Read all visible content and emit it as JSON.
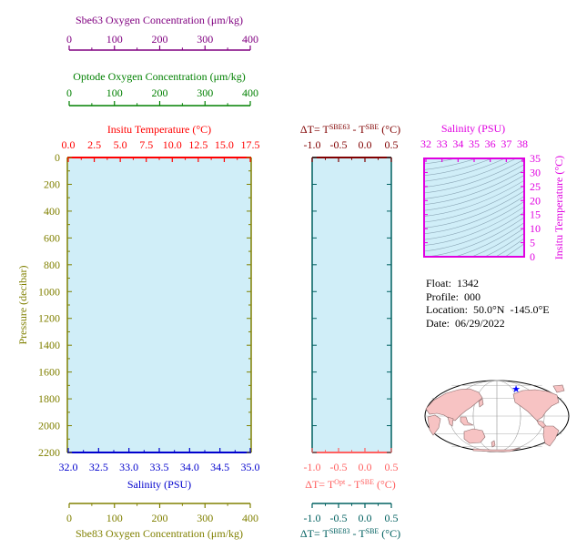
{
  "chart_data": [
    {
      "name": "profile-panel",
      "type": "line",
      "series": [],
      "y_axis": {
        "label": "Pressure (decibar)",
        "range": [
          0,
          2200
        ],
        "ticks": [
          0,
          200,
          400,
          600,
          800,
          1000,
          1200,
          1400,
          1600,
          1800,
          2000,
          2200
        ],
        "inverted": true,
        "color": "#808000"
      },
      "top_axes": [
        {
          "label": "Insitu Temperature (°C)",
          "range": [
            0,
            17.5
          ],
          "ticks": [
            "0.0",
            "2.5",
            "5.0",
            "7.5",
            "10.0",
            "12.5",
            "15.0",
            "17.5"
          ],
          "color": "#ff0000"
        },
        {
          "label": "Optode Oxygen Concentration (μm/kg)",
          "range": [
            0,
            400
          ],
          "ticks": [
            "0",
            "100",
            "200",
            "300",
            "400"
          ],
          "color": "#008000"
        },
        {
          "label": "Sbe63 Oxygen Concentration (μm/kg)",
          "range": [
            0,
            400
          ],
          "ticks": [
            "0",
            "100",
            "200",
            "300",
            "400"
          ],
          "color": "#800080"
        }
      ],
      "bottom_axes": [
        {
          "label": "Salinity (PSU)",
          "range": [
            32,
            35
          ],
          "ticks": [
            "32.0",
            "32.5",
            "33.0",
            "33.5",
            "34.0",
            "34.5",
            "35.0"
          ],
          "color": "#0000cd"
        },
        {
          "label": "Sbe83 Oxygen Concentration (μm/kg)",
          "range": [
            0,
            400
          ],
          "ticks": [
            "0",
            "100",
            "200",
            "300",
            "400"
          ],
          "color": "#808000"
        }
      ],
      "background": "#d0eef8"
    },
    {
      "name": "delta-t-panel",
      "type": "line",
      "series": [],
      "x_range": [
        -1.0,
        0.5
      ],
      "ticks": [
        "-1.0",
        "-0.5",
        "0.0",
        "0.5"
      ],
      "top_label": {
        "prefix": "ΔT= T",
        "sup1": "SBE63",
        "mid": " - T",
        "sup2": "SBE",
        "suffix": " (°C)",
        "color": "#800000"
      },
      "bottom_label_1": {
        "prefix": "ΔT= T",
        "sup1": "Opt",
        "mid": " - T",
        "sup2": "SBE",
        "suffix": " (°C)",
        "color": "#ff6060"
      },
      "bottom_label_2": {
        "prefix": "ΔT= T",
        "sup1": "SBE83",
        "mid": " - T",
        "sup2": "SBE",
        "suffix": " (°C)",
        "color": "#006060"
      }
    },
    {
      "name": "ts-diagram",
      "type": "line",
      "series": [],
      "x_axis": {
        "label": "Salinity (PSU)",
        "range": [
          32,
          38
        ],
        "ticks": [
          "32",
          "33",
          "34",
          "35",
          "36",
          "37",
          "38"
        ],
        "color": "#e000e0"
      },
      "y_axis": {
        "label": "Insitu Temperature (°C)",
        "range": [
          0,
          35
        ],
        "ticks": [
          "0",
          "5",
          "10",
          "15",
          "20",
          "25",
          "30",
          "35"
        ],
        "color": "#e000e0"
      }
    }
  ],
  "float_info": {
    "float": "Float:  1342",
    "profile": "Profile:  000",
    "location": "Location:  50.0°N  -145.0°E",
    "date": "Date:  06/29/2022"
  },
  "map": {
    "marker_lat": 50.0,
    "marker_lon": -145.0,
    "marker_color": "#0000ff",
    "land_color": "#f7c3c3",
    "ocean_color": "#ffffff"
  }
}
